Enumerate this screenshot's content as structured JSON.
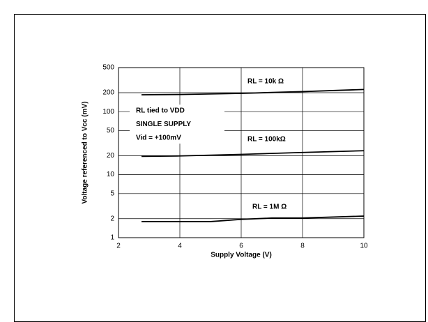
{
  "chart_data": {
    "type": "line",
    "xlabel": "Supply Voltage (V)",
    "ylabel": "Voltage referenced to Vcc (mV)",
    "annotations": [
      "RL tied to VDD",
      "SINGLE SUPPLY",
      "Vid = +100mV"
    ],
    "xlim": [
      2,
      10
    ],
    "xticks": [
      2,
      4,
      6,
      8,
      10
    ],
    "ylim": [
      1,
      500
    ],
    "yticks": [
      1,
      2,
      5,
      10,
      20,
      50,
      100,
      200,
      500
    ],
    "ylog": true,
    "grid": true,
    "series": [
      {
        "name": "RL = 10k Ω",
        "color": "#000000",
        "x": [
          2.75,
          4,
          6,
          8,
          10
        ],
        "values": [
          185,
          187,
          195,
          208,
          225
        ]
      },
      {
        "name": "RL = 100kΩ",
        "color": "#000000",
        "x": [
          2.75,
          4,
          6,
          8,
          10
        ],
        "values": [
          19.5,
          19.8,
          21,
          22.5,
          24
        ]
      },
      {
        "name": "RL = 1M Ω",
        "color": "#000000",
        "x": [
          2.75,
          5,
          6,
          7,
          8,
          10
        ],
        "values": [
          1.8,
          1.8,
          1.95,
          2.05,
          2.05,
          2.2
        ]
      }
    ]
  }
}
